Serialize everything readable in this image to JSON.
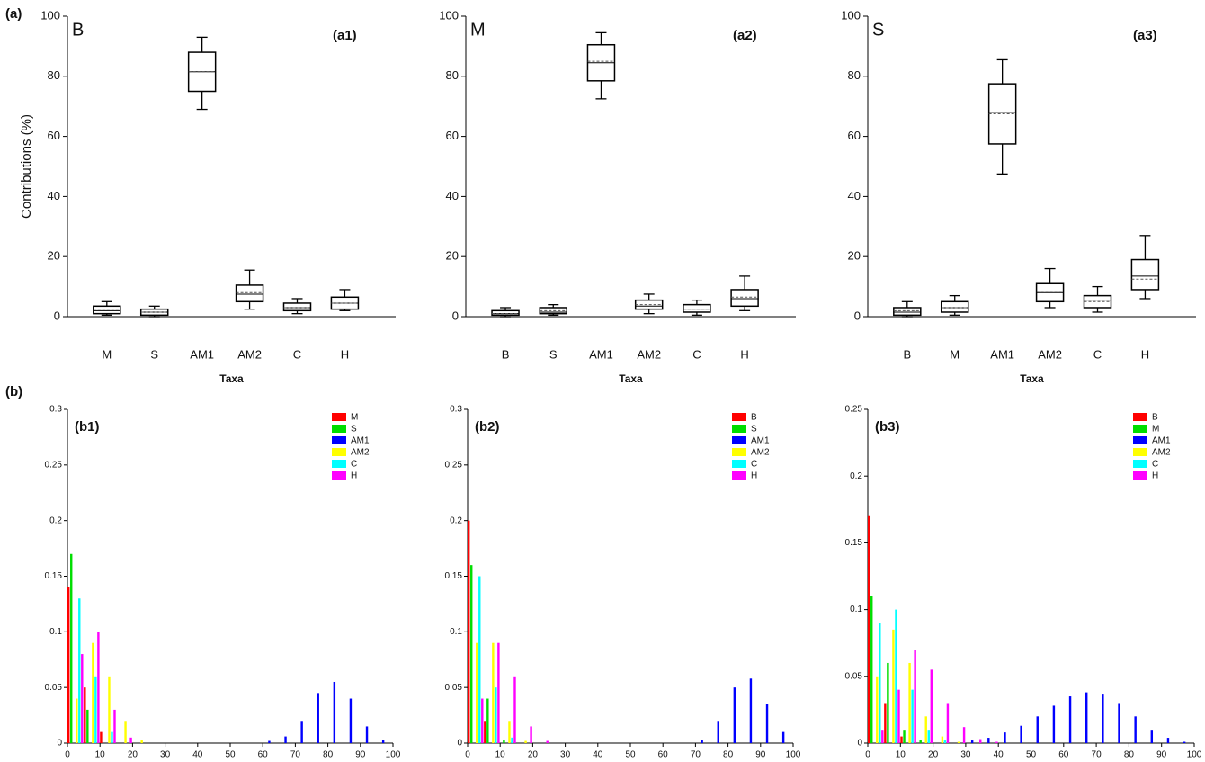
{
  "group_labels": [
    "(a)",
    "(b)"
  ],
  "chart_data": [
    {
      "type": "box",
      "panel_label": "(a1)",
      "inset_label": "B",
      "ylabel": "Contributions (%)",
      "xlabel": "Taxa",
      "categories": [
        "M",
        "S",
        "AM1",
        "AM2",
        "C",
        "H"
      ],
      "boxes": [
        {
          "low": 0.5,
          "q1": 1,
          "median": 2,
          "mean": 2.5,
          "q3": 3.5,
          "high": 5
        },
        {
          "low": 0,
          "q1": 0.5,
          "median": 1.5,
          "mean": 1.5,
          "q3": 2.5,
          "high": 3.5
        },
        {
          "low": 69,
          "q1": 75,
          "median": 81.5,
          "mean": 81.5,
          "q3": 88,
          "high": 93
        },
        {
          "low": 2.5,
          "q1": 5,
          "median": 7.5,
          "mean": 8,
          "q3": 10.5,
          "high": 15.5
        },
        {
          "low": 1,
          "q1": 2,
          "median": 3,
          "mean": 3,
          "q3": 4.5,
          "high": 6
        },
        {
          "low": 2,
          "q1": 2.5,
          "median": 4.5,
          "mean": 4.5,
          "q3": 6.5,
          "high": 9
        }
      ],
      "ylim": [
        0,
        100
      ],
      "yticks": [
        0,
        20,
        40,
        60,
        80,
        100
      ]
    },
    {
      "type": "box",
      "panel_label": "(a2)",
      "inset_label": "M",
      "xlabel": "Taxa",
      "categories": [
        "B",
        "S",
        "AM1",
        "AM2",
        "C",
        "H"
      ],
      "boxes": [
        {
          "low": 0,
          "q1": 0.5,
          "median": 1,
          "mean": 1,
          "q3": 2,
          "high": 3
        },
        {
          "low": 0.5,
          "q1": 1,
          "median": 1.5,
          "mean": 2,
          "q3": 3,
          "high": 4
        },
        {
          "low": 72.5,
          "q1": 78.5,
          "median": 84.5,
          "mean": 85,
          "q3": 90.5,
          "high": 94.5
        },
        {
          "low": 1,
          "q1": 2.5,
          "median": 3.5,
          "mean": 4,
          "q3": 5.5,
          "high": 7.5
        },
        {
          "low": 0.5,
          "q1": 1.5,
          "median": 2.5,
          "mean": 2.5,
          "q3": 4,
          "high": 5.5
        },
        {
          "low": 2,
          "q1": 3.5,
          "median": 6,
          "mean": 6.5,
          "q3": 9,
          "high": 13.5
        }
      ],
      "ylim": [
        0,
        100
      ],
      "yticks": [
        0,
        20,
        40,
        60,
        80,
        100
      ]
    },
    {
      "type": "box",
      "panel_label": "(a3)",
      "inset_label": "S",
      "xlabel": "Taxa",
      "categories": [
        "B",
        "M",
        "AM1",
        "AM2",
        "C",
        "H"
      ],
      "boxes": [
        {
          "low": 0,
          "q1": 0.5,
          "median": 1.5,
          "mean": 2,
          "q3": 3,
          "high": 5
        },
        {
          "low": 0.5,
          "q1": 1.5,
          "median": 3,
          "mean": 3,
          "q3": 5,
          "high": 7
        },
        {
          "low": 47.5,
          "q1": 57.5,
          "median": 68,
          "mean": 67.5,
          "q3": 77.5,
          "high": 85.5
        },
        {
          "low": 3,
          "q1": 5,
          "median": 8,
          "mean": 8.5,
          "q3": 11,
          "high": 16
        },
        {
          "low": 1.5,
          "q1": 3,
          "median": 5.5,
          "mean": 5,
          "q3": 7,
          "high": 10
        },
        {
          "low": 6,
          "q1": 9,
          "median": 13.5,
          "mean": 12.5,
          "q3": 19,
          "high": 27
        }
      ],
      "ylim": [
        0,
        100
      ],
      "yticks": [
        0,
        20,
        40,
        60,
        80,
        100
      ]
    },
    {
      "type": "histogram",
      "panel_label": "(b1)",
      "legend": "upper right",
      "bins": [
        0,
        5,
        10,
        15,
        20,
        25,
        30,
        35,
        40,
        45,
        50,
        55,
        60,
        65,
        70,
        75,
        80,
        85,
        90,
        95,
        100
      ],
      "series": [
        {
          "name": "M",
          "color": "#ff0000",
          "values": [
            0.14,
            0.05,
            0.01,
            0,
            0,
            0,
            0,
            0,
            0,
            0,
            0,
            0,
            0,
            0,
            0,
            0,
            0,
            0,
            0,
            0
          ]
        },
        {
          "name": "S",
          "color": "#00dd00",
          "values": [
            0.17,
            0.03,
            0,
            0,
            0,
            0,
            0,
            0,
            0,
            0,
            0,
            0,
            0,
            0,
            0,
            0,
            0,
            0,
            0,
            0
          ]
        },
        {
          "name": "AM1",
          "color": "#0000ff",
          "values": [
            0,
            0,
            0,
            0,
            0,
            0,
            0,
            0,
            0,
            0,
            0,
            0,
            0.002,
            0.006,
            0.02,
            0.045,
            0.055,
            0.04,
            0.015,
            0.003
          ]
        },
        {
          "name": "AM2",
          "color": "#ffff00",
          "values": [
            0.04,
            0.09,
            0.06,
            0.02,
            0.003,
            0,
            0,
            0,
            0,
            0,
            0,
            0,
            0,
            0,
            0,
            0,
            0,
            0,
            0,
            0
          ]
        },
        {
          "name": "C",
          "color": "#00ffff",
          "values": [
            0.13,
            0.06,
            0.01,
            0,
            0,
            0,
            0,
            0,
            0,
            0,
            0,
            0,
            0,
            0,
            0,
            0,
            0,
            0,
            0,
            0
          ]
        },
        {
          "name": "H",
          "color": "#ff00ff",
          "values": [
            0.08,
            0.1,
            0.03,
            0.005,
            0,
            0,
            0,
            0,
            0,
            0,
            0,
            0,
            0,
            0,
            0,
            0,
            0,
            0,
            0,
            0
          ]
        }
      ],
      "xlim": [
        0,
        100
      ],
      "xticks": [
        0,
        10,
        20,
        30,
        40,
        50,
        60,
        70,
        80,
        90,
        100
      ],
      "ylim": [
        0,
        0.3
      ],
      "yticks": [
        0,
        0.05,
        0.1,
        0.15,
        0.2,
        0.25,
        0.3
      ]
    },
    {
      "type": "histogram",
      "panel_label": "(b2)",
      "legend": "upper right",
      "bins": [
        0,
        5,
        10,
        15,
        20,
        25,
        30,
        35,
        40,
        45,
        50,
        55,
        60,
        65,
        70,
        75,
        80,
        85,
        90,
        95,
        100
      ],
      "series": [
        {
          "name": "B",
          "color": "#ff0000",
          "values": [
            0.2,
            0.02,
            0,
            0,
            0,
            0,
            0,
            0,
            0,
            0,
            0,
            0,
            0,
            0,
            0,
            0,
            0,
            0,
            0,
            0
          ]
        },
        {
          "name": "S",
          "color": "#00dd00",
          "values": [
            0.16,
            0.04,
            0.003,
            0,
            0,
            0,
            0,
            0,
            0,
            0,
            0,
            0,
            0,
            0,
            0,
            0,
            0,
            0,
            0,
            0
          ]
        },
        {
          "name": "AM1",
          "color": "#0000ff",
          "values": [
            0,
            0,
            0,
            0,
            0,
            0,
            0,
            0,
            0,
            0,
            0,
            0,
            0,
            0,
            0.003,
            0.02,
            0.05,
            0.058,
            0.035,
            0.01
          ]
        },
        {
          "name": "AM2",
          "color": "#ffff00",
          "values": [
            0.09,
            0.09,
            0.02,
            0.002,
            0,
            0,
            0,
            0,
            0,
            0,
            0,
            0,
            0,
            0,
            0,
            0,
            0,
            0,
            0,
            0
          ]
        },
        {
          "name": "C",
          "color": "#00ffff",
          "values": [
            0.15,
            0.05,
            0.005,
            0,
            0,
            0,
            0,
            0,
            0,
            0,
            0,
            0,
            0,
            0,
            0,
            0,
            0,
            0,
            0,
            0
          ]
        },
        {
          "name": "H",
          "color": "#ff00ff",
          "values": [
            0.04,
            0.09,
            0.06,
            0.015,
            0.002,
            0,
            0,
            0,
            0,
            0,
            0,
            0,
            0,
            0,
            0,
            0,
            0,
            0,
            0,
            0
          ]
        }
      ],
      "xlim": [
        0,
        100
      ],
      "xticks": [
        0,
        10,
        20,
        30,
        40,
        50,
        60,
        70,
        80,
        90,
        100
      ],
      "ylim": [
        0,
        0.3
      ],
      "yticks": [
        0,
        0.05,
        0.1,
        0.15,
        0.2,
        0.25,
        0.3
      ]
    },
    {
      "type": "histogram",
      "panel_label": "(b3)",
      "legend": "upper right",
      "bins": [
        0,
        5,
        10,
        15,
        20,
        25,
        30,
        35,
        40,
        45,
        50,
        55,
        60,
        65,
        70,
        75,
        80,
        85,
        90,
        95,
        100
      ],
      "series": [
        {
          "name": "B",
          "color": "#ff0000",
          "values": [
            0.17,
            0.03,
            0.005,
            0,
            0,
            0,
            0,
            0,
            0,
            0,
            0,
            0,
            0,
            0,
            0,
            0,
            0,
            0,
            0,
            0
          ]
        },
        {
          "name": "M",
          "color": "#00dd00",
          "values": [
            0.11,
            0.06,
            0.01,
            0.002,
            0,
            0,
            0,
            0,
            0,
            0,
            0,
            0,
            0,
            0,
            0,
            0,
            0,
            0,
            0,
            0
          ]
        },
        {
          "name": "AM1",
          "color": "#0000ff",
          "values": [
            0,
            0,
            0,
            0,
            0,
            0,
            0.002,
            0.004,
            0.008,
            0.013,
            0.02,
            0.028,
            0.035,
            0.038,
            0.037,
            0.03,
            0.02,
            0.01,
            0.004,
            0.001
          ]
        },
        {
          "name": "AM2",
          "color": "#ffff00",
          "values": [
            0.05,
            0.085,
            0.06,
            0.02,
            0.005,
            0.001,
            0,
            0,
            0,
            0,
            0,
            0,
            0,
            0,
            0,
            0,
            0,
            0,
            0,
            0
          ]
        },
        {
          "name": "C",
          "color": "#00ffff",
          "values": [
            0.09,
            0.1,
            0.04,
            0.01,
            0.002,
            0,
            0,
            0,
            0,
            0,
            0,
            0,
            0,
            0,
            0,
            0,
            0,
            0,
            0,
            0
          ]
        },
        {
          "name": "H",
          "color": "#ff00ff",
          "values": [
            0.01,
            0.04,
            0.07,
            0.055,
            0.03,
            0.012,
            0.003,
            0.001,
            0,
            0,
            0,
            0,
            0,
            0,
            0,
            0,
            0,
            0,
            0,
            0
          ]
        }
      ],
      "xlim": [
        0,
        100
      ],
      "xticks": [
        0,
        10,
        20,
        30,
        40,
        50,
        60,
        70,
        80,
        90,
        100
      ],
      "ylim": [
        0,
        0.25
      ],
      "yticks": [
        0,
        0.05,
        0.1,
        0.15,
        0.2,
        0.25
      ]
    }
  ]
}
